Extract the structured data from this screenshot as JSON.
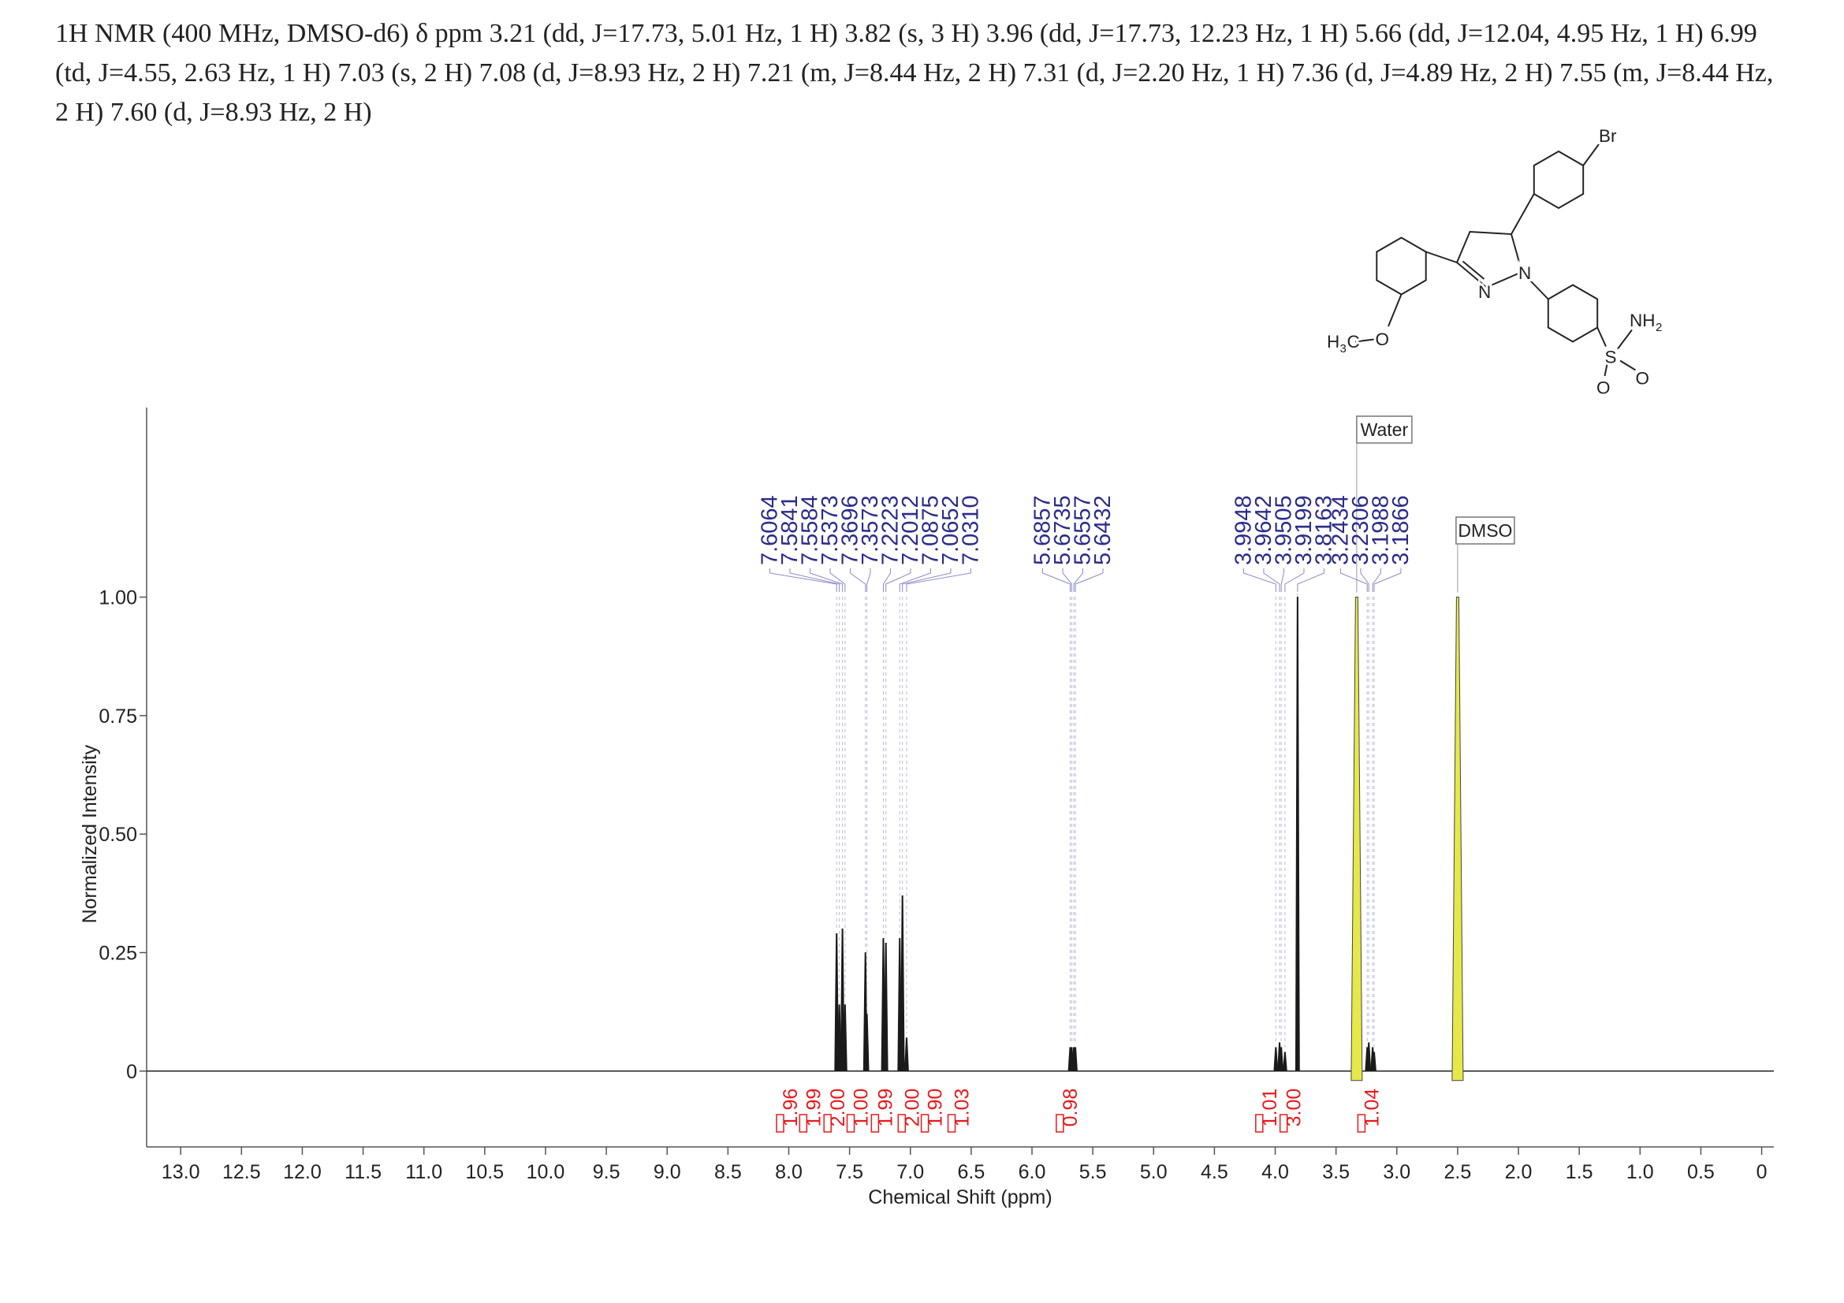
{
  "chart_data": {
    "type": "nmr",
    "description": "1H NMR (400 MHz, DMSO-d6) δ ppm 3.21 (dd, J=17.73, 5.01 Hz, 1 H) 3.82 (s, 3 H) 3.96 (dd, J=17.73, 12.23 Hz, 1 H) 5.66 (dd, J=12.04, 4.95 Hz, 1 H) 6.99 (td, J=4.55, 2.63 Hz, 1 H) 7.03 (s, 2 H) 7.08 (d, J=8.93 Hz, 2 H) 7.21 (m, J=8.44 Hz, 2 H) 7.31 (d, J=2.20 Hz, 1 H) 7.36 (d, J=4.89 Hz, 2 H) 7.55 (m, J=8.44 Hz, 2 H) 7.60 (d, J=8.93 Hz, 2 H)",
    "x_label": "Chemical Shift (ppm)",
    "y_label": "Normalized Intensity",
    "xlim": [
      13.28,
      -0.1
    ],
    "ylim": [
      -0.16,
      1.4
    ],
    "xticks": [
      {
        "value": 13,
        "label": "13.0"
      },
      12.5,
      {
        "value": 12,
        "label": "12.0"
      },
      11.5,
      {
        "value": 11,
        "label": "11.0"
      },
      10.5,
      {
        "value": 10,
        "label": "10.0"
      },
      9.5,
      {
        "value": 9,
        "label": "9.0"
      },
      8.5,
      {
        "value": 8,
        "label": "8.0"
      },
      7.5,
      {
        "value": 7,
        "label": "7.0"
      },
      6.5,
      {
        "value": 6,
        "label": "6.0"
      },
      5.5,
      {
        "value": 5,
        "label": "5.0"
      },
      4.5,
      {
        "value": 4,
        "label": "4.0"
      },
      3.5,
      {
        "value": 3,
        "label": "3.0"
      },
      2.5,
      {
        "value": 2,
        "label": "2.0"
      },
      1.5,
      {
        "value": 1,
        "label": "1.0"
      },
      0.5,
      0
    ],
    "yticks": [
      {
        "value": 1,
        "label": "1.00"
      },
      0.75,
      {
        "value": 0.5,
        "label": "0.50"
      },
      0.25,
      0
    ],
    "peaks": {
      "x": [
        7.6064,
        7.5841,
        7.5584,
        7.5373,
        7.3696,
        7.3573,
        7.2223,
        7.2012,
        7.0875,
        7.0652,
        7.031,
        5.6857,
        5.6735,
        5.6557,
        5.6432,
        3.9948,
        3.9642,
        3.9505,
        3.9199,
        3.8163,
        3.2434,
        3.2306,
        3.1988,
        3.1866
      ],
      "values": [
        0.29,
        0.14,
        0.3,
        0.14,
        0.25,
        0.12,
        0.28,
        0.27,
        0.28,
        0.37,
        0.07,
        0.05,
        0.05,
        0.05,
        0.05,
        0.05,
        0.06,
        0.05,
        0.04,
        1.0,
        0.05,
        0.06,
        0.05,
        0.04
      ],
      "labels": [
        "7.6064",
        "7.5841",
        "7.5584",
        "7.5373",
        "7.3696",
        "7.3573",
        "7.2223",
        "7.2012",
        "7.0875",
        "7.0652",
        "7.0310",
        "5.6857",
        "5.6735",
        "5.6557",
        "5.6432",
        "3.9948",
        "3.9642",
        "3.9505",
        "3.9199",
        "3.8163",
        "3.2434",
        "3.2306",
        "3.1988",
        "3.1866"
      ],
      "color": "#1a1a1a",
      "label_color": "#2b2b8c"
    },
    "solvents": {
      "x": [
        3.33,
        2.5
      ],
      "values": [
        1.0,
        1.0
      ],
      "labels": [
        "Water",
        "DMSO"
      ],
      "color": "#e6e84a"
    },
    "integrals": {
      "x": [
        7.99,
        7.8,
        7.6,
        7.41,
        7.21,
        6.99,
        6.8,
        6.58,
        5.69,
        4.05,
        3.85,
        3.21
      ],
      "values": [
        1.96,
        1.99,
        2.0,
        1.0,
        1.99,
        2.0,
        1.9,
        1.03,
        0.98,
        1.01,
        3.0,
        1.04
      ],
      "value_labels": [
        "1.96",
        "1.99",
        "2.00",
        "1.00",
        "1.99",
        "2.00",
        "1.90",
        "1.03",
        "0.98",
        "1.01",
        "3.00",
        "1.04"
      ],
      "color": "#e8191c"
    }
  },
  "structure": {
    "labels": [
      "Br",
      "N",
      "N",
      "NH",
      "2",
      "H",
      "3",
      "C",
      "O",
      "S",
      "O",
      "O"
    ]
  }
}
